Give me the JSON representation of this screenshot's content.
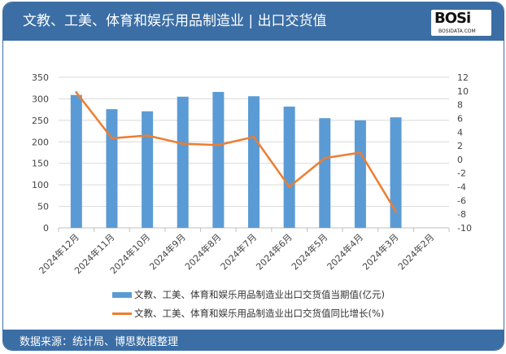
{
  "header": {
    "title": "文教、工美、体育和娱乐用品制造业 | 出口交货值",
    "logo_text": "BOSi",
    "logo_sub": "BOSIDATA.COM"
  },
  "footer": {
    "source": "数据来源：统计局、博思数据整理"
  },
  "colors": {
    "header": "#3b6ea5",
    "bar": "#5b9bd5",
    "line": "#ed7d31"
  },
  "chart_data": {
    "type": "bar+line",
    "categories": [
      "2024年12月",
      "2024年11月",
      "2024年10月",
      "2024年9月",
      "2024年8月",
      "2024年7月",
      "2024年6月",
      "2024年5月",
      "2024年4月",
      "2024年3月",
      "2024年2月"
    ],
    "series": [
      {
        "name": "文教、工美、体育和娱乐用品制造业出口交货值当期值(亿元)",
        "type": "bar",
        "axis": "left",
        "values": [
          309,
          276,
          271,
          305,
          316,
          306,
          282,
          255,
          250,
          257,
          null
        ]
      },
      {
        "name": "文教、工美、体育和娱乐用品制造业出口交货值同比增长(%)",
        "type": "line",
        "axis": "right",
        "values": [
          9.8,
          3.1,
          3.5,
          2.3,
          2.1,
          3.3,
          -4.0,
          0.2,
          1.0,
          -7.6,
          null
        ]
      }
    ],
    "left_axis": {
      "range": [
        0,
        350
      ],
      "ticks": [
        0,
        50,
        100,
        150,
        200,
        250,
        300,
        350
      ]
    },
    "right_axis": {
      "range": [
        -10,
        12
      ],
      "ticks": [
        -10,
        -8,
        -6,
        -4,
        -2,
        0,
        2,
        4,
        6,
        8,
        10,
        12
      ]
    },
    "grid": true,
    "legend": "bottom"
  }
}
